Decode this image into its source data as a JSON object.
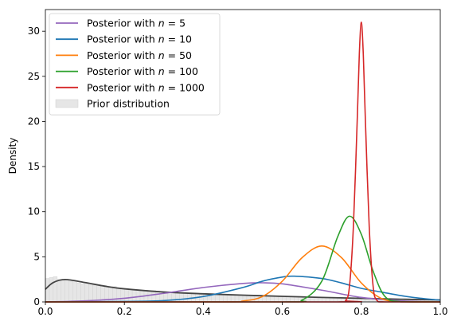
{
  "chart_data": {
    "type": "line",
    "title": "",
    "xlabel": "",
    "ylabel": "Density",
    "xlim": [
      0,
      1
    ],
    "ylim": [
      0,
      32.4
    ],
    "xticks": [
      0.0,
      0.2,
      0.4,
      0.6,
      0.8,
      1.0
    ],
    "xtick_labels": [
      "0.0",
      "0.2",
      "0.4",
      "0.6",
      "0.8",
      "1.0"
    ],
    "yticks": [
      0,
      5,
      10,
      15,
      20,
      25,
      30
    ],
    "ytick_labels": [
      "0",
      "5",
      "10",
      "15",
      "20",
      "25",
      "30"
    ],
    "grid": false,
    "legend_position": "top-left",
    "series": [
      {
        "name": "Posterior with ",
        "n_value": "5",
        "color": "#9467bd",
        "x": [
          0.0,
          0.1,
          0.2,
          0.3,
          0.4,
          0.5,
          0.55,
          0.6,
          0.7,
          0.8,
          0.9,
          1.0
        ],
        "y": [
          0.0,
          0.12,
          0.4,
          0.95,
          1.6,
          2.05,
          2.12,
          2.0,
          1.3,
          0.5,
          0.12,
          0.0
        ]
      },
      {
        "name": "Posterior with ",
        "n_value": "10",
        "color": "#1f77b4",
        "x": [
          0.0,
          0.2,
          0.3,
          0.4,
          0.5,
          0.55,
          0.6,
          0.63,
          0.7,
          0.75,
          0.8,
          0.85,
          0.9,
          0.95,
          1.0
        ],
        "y": [
          0.0,
          0.05,
          0.15,
          0.6,
          1.6,
          2.3,
          2.75,
          2.85,
          2.6,
          2.1,
          1.5,
          1.1,
          0.7,
          0.4,
          0.2
        ]
      },
      {
        "name": "Posterior with ",
        "n_value": "50",
        "color": "#ff7f0e",
        "x": [
          0.0,
          0.45,
          0.5,
          0.55,
          0.6,
          0.65,
          0.7,
          0.75,
          0.8,
          0.85,
          0.9,
          1.0
        ],
        "y": [
          0.0,
          0.0,
          0.1,
          0.6,
          2.3,
          4.9,
          6.2,
          4.9,
          2.1,
          0.4,
          0.02,
          0.0
        ]
      },
      {
        "name": "Posterior with ",
        "n_value": "100",
        "color": "#2ca02c",
        "x": [
          0.0,
          0.6,
          0.65,
          0.7,
          0.74,
          0.77,
          0.8,
          0.83,
          0.86,
          0.9,
          1.0
        ],
        "y": [
          0.0,
          0.0,
          0.2,
          2.3,
          7.2,
          9.5,
          7.5,
          3.4,
          0.6,
          0.02,
          0.0
        ]
      },
      {
        "name": "Posterior with ",
        "n_value": "1000",
        "color": "#d62728",
        "x": [
          0.0,
          0.74,
          0.76,
          0.77,
          0.78,
          0.79,
          0.795,
          0.8,
          0.805,
          0.81,
          0.82,
          0.83,
          0.84,
          0.86,
          1.0
        ],
        "y": [
          0.0,
          0.0,
          0.15,
          1.7,
          8.4,
          20.6,
          27.5,
          31.0,
          27.5,
          20.6,
          8.4,
          1.7,
          0.15,
          0.0,
          0.0
        ]
      }
    ],
    "prior_density": {
      "color": "#444444",
      "x": [
        0.0,
        0.02,
        0.05,
        0.1,
        0.15,
        0.2,
        0.3,
        0.4,
        0.5,
        0.6,
        0.7,
        0.8,
        0.9,
        1.0
      ],
      "y": [
        1.4,
        2.15,
        2.48,
        2.15,
        1.75,
        1.45,
        1.1,
        0.9,
        0.75,
        0.62,
        0.5,
        0.4,
        0.3,
        0.22
      ]
    },
    "prior_histogram": {
      "name": "Prior distribution",
      "color": "#e6e6e6",
      "bins": [
        0.0,
        0.01,
        0.02,
        0.03,
        0.04,
        0.05,
        0.06,
        0.07,
        0.08,
        0.09,
        0.1,
        0.11,
        0.12,
        0.13,
        0.14,
        0.15,
        0.16,
        0.17,
        0.18,
        0.19,
        0.2,
        0.21,
        0.22,
        0.23,
        0.24,
        0.25,
        0.26,
        0.27,
        0.28,
        0.29,
        0.3,
        0.31,
        0.32,
        0.33,
        0.34,
        0.35,
        0.36,
        0.37,
        0.38,
        0.39,
        0.4,
        0.41,
        0.42,
        0.43,
        0.44,
        0.45,
        0.46,
        0.47,
        0.48,
        0.49,
        0.5,
        0.51,
        0.52,
        0.53,
        0.54,
        0.55,
        0.56,
        0.57,
        0.58,
        0.59,
        0.6,
        0.61,
        0.62,
        0.63,
        0.64,
        0.65,
        0.66,
        0.67,
        0.68,
        0.69,
        0.7,
        0.71,
        0.72,
        0.73,
        0.74,
        0.75,
        0.76,
        0.77,
        0.78,
        0.79,
        0.8,
        0.81,
        0.82,
        0.83,
        0.84,
        0.85,
        0.86,
        0.87,
        0.88,
        0.89,
        0.9,
        0.91,
        0.92,
        0.93,
        0.94,
        0.95,
        0.96,
        0.97,
        0.98,
        0.99,
        1.0
      ],
      "heights": [
        2.6,
        2.7,
        2.8,
        2.5,
        2.4,
        2.5,
        2.3,
        2.3,
        2.1,
        2.0,
        2.1,
        1.9,
        1.9,
        1.8,
        1.8,
        1.7,
        1.6,
        1.7,
        1.5,
        1.5,
        1.5,
        1.4,
        1.4,
        1.35,
        1.3,
        1.3,
        1.2,
        1.25,
        1.2,
        1.1,
        1.1,
        1.1,
        1.0,
        1.0,
        1.0,
        0.98,
        0.95,
        0.95,
        0.9,
        0.9,
        0.9,
        0.88,
        0.85,
        0.85,
        0.82,
        0.8,
        0.8,
        0.78,
        0.76,
        0.75,
        0.75,
        0.72,
        0.72,
        0.7,
        0.68,
        0.67,
        0.66,
        0.65,
        0.64,
        0.63,
        0.62,
        0.6,
        0.59,
        0.58,
        0.57,
        0.56,
        0.55,
        0.54,
        0.52,
        0.51,
        0.5,
        0.49,
        0.48,
        0.47,
        0.46,
        0.45,
        0.44,
        0.43,
        0.42,
        0.41,
        0.4,
        0.39,
        0.38,
        0.37,
        0.36,
        0.35,
        0.34,
        0.33,
        0.32,
        0.31,
        0.3,
        0.29,
        0.28,
        0.27,
        0.26,
        0.25,
        0.24,
        0.23,
        0.22,
        0.2
      ]
    }
  }
}
